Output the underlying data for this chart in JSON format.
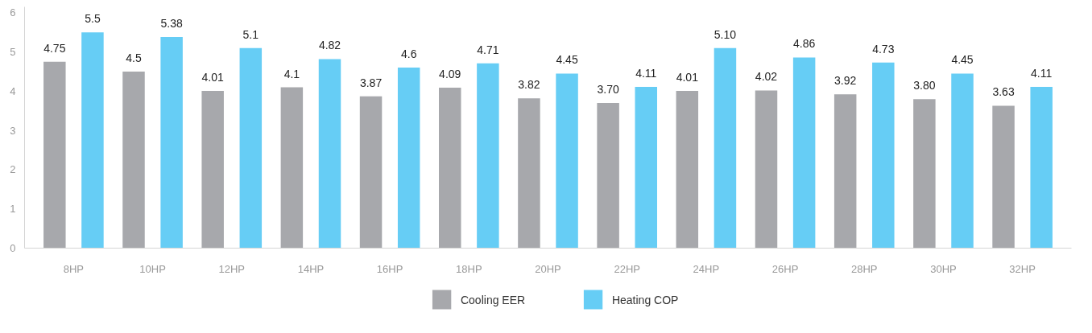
{
  "chart_data": {
    "type": "bar",
    "categories": [
      "8HP",
      "10HP",
      "12HP",
      "14HP",
      "16HP",
      "18HP",
      "20HP",
      "22HP",
      "24HP",
      "26HP",
      "28HP",
      "30HP",
      "32HP"
    ],
    "series": [
      {
        "name": "Cooling EER",
        "color": "#a7a8ac",
        "values": [
          4.75,
          4.5,
          4.01,
          4.1,
          3.87,
          4.09,
          3.82,
          3.7,
          4.01,
          4.02,
          3.92,
          3.8,
          3.63
        ],
        "value_labels": [
          "4.75",
          "4.5",
          "4.01",
          "4.1",
          "3.87",
          "4.09",
          "3.82",
          "3.70",
          "4.01",
          "4.02",
          "3.92",
          "3.80",
          "3.63"
        ]
      },
      {
        "name": "Heating COP",
        "color": "#66cdf5",
        "values": [
          5.5,
          5.38,
          5.1,
          4.82,
          4.6,
          4.71,
          4.45,
          4.11,
          5.1,
          4.86,
          4.73,
          4.45,
          4.11
        ],
        "value_labels": [
          "5.5",
          "5.38",
          "5.1",
          "4.82",
          "4.6",
          "4.71",
          "4.45",
          "4.11",
          "5.10",
          "4.86",
          "4.73",
          "4.45",
          "4.11"
        ]
      }
    ],
    "ylim": [
      0,
      6.15
    ],
    "yticks": [
      0,
      1,
      2,
      3,
      4,
      5,
      6
    ],
    "grid": false,
    "legend": "bottom"
  }
}
